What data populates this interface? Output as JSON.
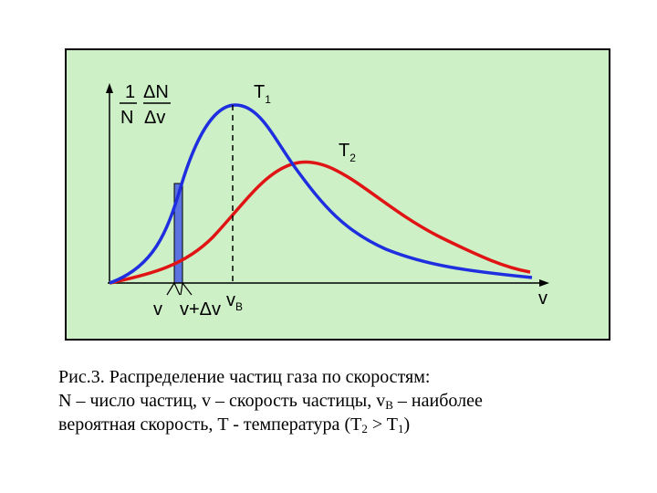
{
  "figure": {
    "background_color": "#cdf0c6",
    "curve_t1_color": "#1f2fe0",
    "curve_t2_color": "#e01414",
    "strip_color": "#5a73e0",
    "y_axis_label": {
      "one": "1",
      "n": "N",
      "delta_n": "ΔN",
      "delta_v": "Δv"
    },
    "x_axis_label": "v",
    "curve_t1_label": {
      "main": "T",
      "sub": "1"
    },
    "curve_t2_label": {
      "main": "T",
      "sub": "2"
    },
    "tick_v": "v",
    "tick_v_dv": "v+Δv",
    "tick_vb": {
      "main": "v",
      "sub": "B"
    }
  },
  "caption": {
    "line1": "Рис.3. Распределение частиц газа по скоростям:",
    "line2_a": "N – число частиц, v – скорость частицы, v",
    "line2_sub": "B",
    "line2_b": " – наиболее",
    "line3_a": "вероятная скорость, T - температура (T",
    "line3_sub1": "2",
    "line3_b": " > T",
    "line3_sub2": "1",
    "line3_c": ")"
  }
}
